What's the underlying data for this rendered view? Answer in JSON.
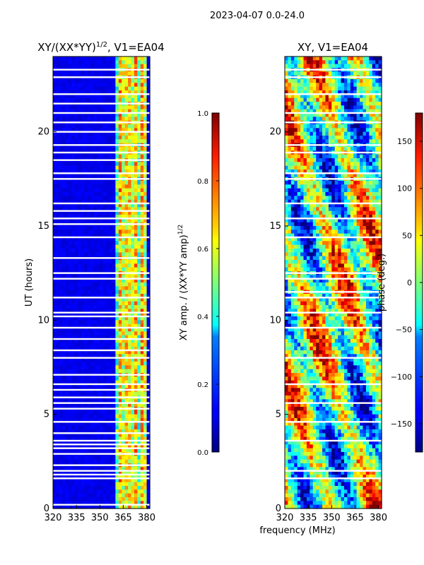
{
  "figure": {
    "suptitle": "2023-04-07 0.0-24.0",
    "xlabel": "frequency (MHz)"
  },
  "chart_data": [
    {
      "type": "heatmap",
      "title_main": "XY/(XX*YY)",
      "title_sup": "1/2",
      "title_tail": ", V1=EA04",
      "ylabel": "UT (hours)",
      "xlim": [
        320,
        382
      ],
      "ylim": [
        0,
        24
      ],
      "xticks": [
        "320",
        "335",
        "350",
        "365",
        "380"
      ],
      "xtick_values": [
        320,
        335,
        350,
        365,
        380
      ],
      "yticks": [
        "0",
        "5",
        "10",
        "15",
        "20"
      ],
      "ytick_values": [
        0,
        5,
        10,
        15,
        20
      ],
      "active_band_mhz": [
        361,
        380
      ],
      "flagged_rows_hours": [
        0.2,
        1.6,
        1.8,
        2.0,
        2.3,
        2.9,
        3.2,
        3.4,
        3.6,
        4.0,
        4.6,
        5.3,
        5.6,
        5.9,
        6.3,
        6.6,
        7.1,
        8.0,
        8.4,
        9.0,
        9.6,
        10.2,
        10.4,
        11.2,
        12.2,
        12.5,
        13.3,
        14.4,
        15.1,
        15.4,
        15.8,
        16.2,
        17.5,
        17.8,
        18.5,
        18.9,
        19.3,
        20.0,
        20.5,
        21.0,
        21.5,
        22.0,
        22.9,
        23.3
      ],
      "colorbar": {
        "label_main": "XY amp. / (XX*YY amp)",
        "label_sup": "1/2",
        "range": [
          0.0,
          1.0
        ],
        "ticks": [
          "0.0",
          "0.2",
          "0.4",
          "0.6",
          "0.8",
          "1.0"
        ],
        "tick_values": [
          0.0,
          0.2,
          0.4,
          0.6,
          0.8,
          1.0
        ]
      }
    },
    {
      "type": "heatmap",
      "title": "XY, V1=EA04",
      "xlim": [
        320,
        382
      ],
      "ylim": [
        0,
        24
      ],
      "xticks": [
        "320",
        "335",
        "350",
        "365",
        "380"
      ],
      "xtick_values": [
        320,
        335,
        350,
        365,
        380
      ],
      "yticks": [
        "0",
        "5",
        "10",
        "15",
        "20"
      ],
      "ytick_values": [
        0,
        5,
        10,
        15,
        20
      ],
      "flagged_rows_hours": [
        1.6,
        2.0,
        3.6,
        4.6,
        5.6,
        6.6,
        8.0,
        9.6,
        10.4,
        11.2,
        11.5,
        12.2,
        12.5,
        14.4,
        15.4,
        16.2,
        17.5,
        17.8,
        18.9,
        19.3,
        20.5,
        21.0,
        22.0,
        22.9,
        23.3
      ],
      "colorbar": {
        "label": "phase (deg.)",
        "range": [
          -180,
          180
        ],
        "ticks": [
          "150",
          "100",
          "50",
          "0",
          "−50",
          "−100",
          "−150"
        ],
        "tick_values": [
          150,
          100,
          50,
          0,
          -50,
          -100,
          -150
        ]
      }
    }
  ]
}
